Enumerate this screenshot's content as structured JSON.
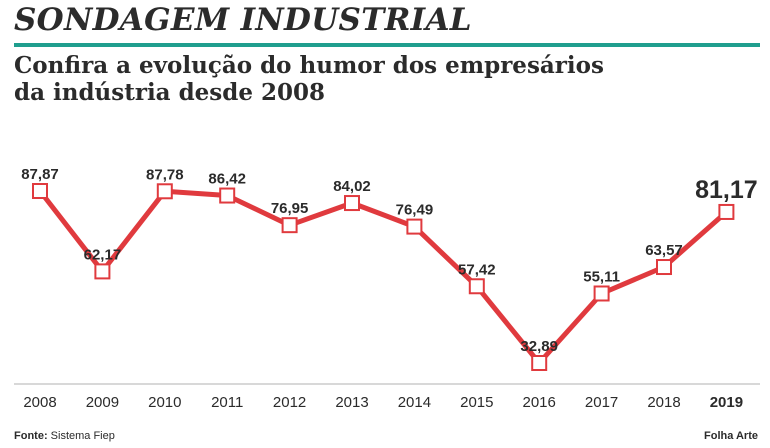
{
  "header": {
    "title": "SONDAGEM INDUSTRIAL",
    "subtitle_line1": "Confira a evolução do humor dos empresários",
    "subtitle_line2": "da indústria desde 2008"
  },
  "footer": {
    "source_label": "Fonte:",
    "source_text": "Sistema Fiep",
    "credit": "Folha Arte"
  },
  "colors": {
    "line": "#e03a3e",
    "accent_rule": "#1f9e8e",
    "text": "#2b2b2b",
    "axis": "#b0b0b0"
  },
  "chart_data": {
    "type": "line",
    "x": [
      "2008",
      "2009",
      "2010",
      "2011",
      "2012",
      "2013",
      "2014",
      "2015",
      "2016",
      "2017",
      "2018",
      "2019"
    ],
    "values": [
      87.87,
      62.17,
      87.78,
      86.42,
      76.95,
      84.02,
      76.49,
      57.42,
      32.89,
      55.11,
      63.57,
      81.17
    ],
    "value_labels": [
      "87,87",
      "62,17",
      "87,78",
      "86,42",
      "76,95",
      "84,02",
      "76,49",
      "57,42",
      "32,89",
      "55,11",
      "63,57",
      "81,17"
    ],
    "highlight": "2019",
    "grid": false,
    "legend": "none"
  }
}
